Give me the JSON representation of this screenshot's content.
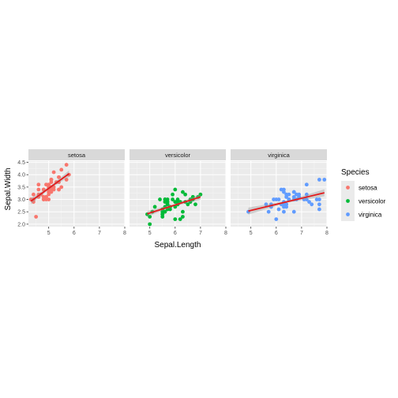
{
  "chart_data": {
    "type": "scatter",
    "xlabel": "Sepal.Length",
    "ylabel": "Sepal.Width",
    "xlim": [
      4.2,
      8.0
    ],
    "ylim": [
      1.9,
      4.55
    ],
    "x_ticks": [
      5,
      6,
      7,
      8
    ],
    "y_ticks": [
      2.0,
      2.5,
      3.0,
      3.5,
      4.0,
      4.5
    ],
    "y_tick_labels": [
      "2.0",
      "2.5",
      "3.0",
      "3.5",
      "4.0",
      "4.5"
    ],
    "grid": true,
    "legend": {
      "title": "Species",
      "placement": "right",
      "entries": [
        "setosa",
        "versicolor",
        "virginica"
      ]
    },
    "panels": [
      {
        "name": "setosa",
        "color": "#F8766D",
        "fit": {
          "x": [
            4.3,
            5.8
          ],
          "y": [
            2.93,
            4.04
          ],
          "band": [
            0.12,
            0.05,
            0.13
          ]
        },
        "points": [
          [
            5.1,
            3.5
          ],
          [
            4.9,
            3.0
          ],
          [
            4.7,
            3.2
          ],
          [
            4.6,
            3.1
          ],
          [
            5.0,
            3.6
          ],
          [
            5.4,
            3.9
          ],
          [
            4.6,
            3.4
          ],
          [
            5.0,
            3.4
          ],
          [
            4.4,
            2.9
          ],
          [
            4.9,
            3.1
          ],
          [
            5.4,
            3.7
          ],
          [
            4.8,
            3.4
          ],
          [
            4.8,
            3.0
          ],
          [
            4.3,
            3.0
          ],
          [
            5.8,
            4.0
          ],
          [
            5.7,
            4.4
          ],
          [
            5.4,
            3.9
          ],
          [
            5.1,
            3.5
          ],
          [
            5.7,
            3.8
          ],
          [
            5.1,
            3.8
          ],
          [
            5.4,
            3.4
          ],
          [
            5.1,
            3.7
          ],
          [
            4.6,
            3.6
          ],
          [
            5.1,
            3.3
          ],
          [
            4.8,
            3.4
          ],
          [
            5.0,
            3.0
          ],
          [
            5.0,
            3.4
          ],
          [
            5.2,
            3.5
          ],
          [
            5.2,
            3.4
          ],
          [
            4.7,
            3.2
          ],
          [
            4.8,
            3.1
          ],
          [
            5.4,
            3.4
          ],
          [
            5.2,
            4.1
          ],
          [
            5.5,
            4.2
          ],
          [
            4.9,
            3.1
          ],
          [
            5.0,
            3.2
          ],
          [
            5.5,
            3.5
          ],
          [
            4.9,
            3.6
          ],
          [
            4.4,
            3.0
          ],
          [
            5.1,
            3.4
          ],
          [
            5.0,
            3.5
          ],
          [
            4.5,
            2.3
          ],
          [
            4.4,
            3.2
          ],
          [
            5.0,
            3.5
          ],
          [
            5.1,
            3.8
          ],
          [
            4.8,
            3.0
          ],
          [
            5.1,
            3.8
          ],
          [
            4.6,
            3.2
          ],
          [
            5.3,
            3.7
          ],
          [
            5.0,
            3.3
          ]
        ]
      },
      {
        "name": "versicolor",
        "color": "#00BA38",
        "fit": {
          "x": [
            4.9,
            7.0
          ],
          "y": [
            2.42,
            3.1
          ],
          "band": [
            0.11,
            0.04,
            0.11
          ]
        },
        "points": [
          [
            7.0,
            3.2
          ],
          [
            6.4,
            3.2
          ],
          [
            6.9,
            3.1
          ],
          [
            5.5,
            2.3
          ],
          [
            6.5,
            2.8
          ],
          [
            5.7,
            2.8
          ],
          [
            6.3,
            3.3
          ],
          [
            4.9,
            2.4
          ],
          [
            6.6,
            2.9
          ],
          [
            5.2,
            2.7
          ],
          [
            5.0,
            2.0
          ],
          [
            5.9,
            3.0
          ],
          [
            6.0,
            2.2
          ],
          [
            6.1,
            2.9
          ],
          [
            5.6,
            2.9
          ],
          [
            6.7,
            3.1
          ],
          [
            5.6,
            3.0
          ],
          [
            5.8,
            2.7
          ],
          [
            6.2,
            2.2
          ],
          [
            5.6,
            2.5
          ],
          [
            5.9,
            3.2
          ],
          [
            6.1,
            2.8
          ],
          [
            6.3,
            2.5
          ],
          [
            6.1,
            2.8
          ],
          [
            6.4,
            2.9
          ],
          [
            6.6,
            3.0
          ],
          [
            6.8,
            2.8
          ],
          [
            6.7,
            3.0
          ],
          [
            6.0,
            2.9
          ],
          [
            5.7,
            2.6
          ],
          [
            5.5,
            2.4
          ],
          [
            5.5,
            2.4
          ],
          [
            5.8,
            2.7
          ],
          [
            6.0,
            2.7
          ],
          [
            5.4,
            3.0
          ],
          [
            6.0,
            3.4
          ],
          [
            6.7,
            3.1
          ],
          [
            6.3,
            2.3
          ],
          [
            5.6,
            3.0
          ],
          [
            5.5,
            2.5
          ],
          [
            5.5,
            2.6
          ],
          [
            6.1,
            3.0
          ],
          [
            5.8,
            2.6
          ],
          [
            5.0,
            2.3
          ],
          [
            5.6,
            2.7
          ],
          [
            5.7,
            3.0
          ],
          [
            5.7,
            2.9
          ],
          [
            6.2,
            2.9
          ],
          [
            5.1,
            2.5
          ],
          [
            5.7,
            2.8
          ]
        ]
      },
      {
        "name": "virginica",
        "color": "#619CFF",
        "fit": {
          "x": [
            4.9,
            7.9
          ],
          "y": [
            2.53,
            3.27
          ],
          "band": [
            0.14,
            0.04,
            0.14
          ]
        },
        "points": [
          [
            6.3,
            3.3
          ],
          [
            5.8,
            2.7
          ],
          [
            7.1,
            3.0
          ],
          [
            6.3,
            2.9
          ],
          [
            6.5,
            3.0
          ],
          [
            7.6,
            3.0
          ],
          [
            4.9,
            2.5
          ],
          [
            7.3,
            2.9
          ],
          [
            6.7,
            2.5
          ],
          [
            7.2,
            3.6
          ],
          [
            6.5,
            3.2
          ],
          [
            6.4,
            2.7
          ],
          [
            6.8,
            3.0
          ],
          [
            5.7,
            2.5
          ],
          [
            5.8,
            2.8
          ],
          [
            6.4,
            3.2
          ],
          [
            6.5,
            3.0
          ],
          [
            7.7,
            3.8
          ],
          [
            7.7,
            2.6
          ],
          [
            6.0,
            2.2
          ],
          [
            6.9,
            3.2
          ],
          [
            5.6,
            2.8
          ],
          [
            7.7,
            2.8
          ],
          [
            6.3,
            2.7
          ],
          [
            6.7,
            3.3
          ],
          [
            7.2,
            3.2
          ],
          [
            6.2,
            2.8
          ],
          [
            6.1,
            3.0
          ],
          [
            6.4,
            2.8
          ],
          [
            7.2,
            3.0
          ],
          [
            7.4,
            2.8
          ],
          [
            7.9,
            3.8
          ],
          [
            6.4,
            2.8
          ],
          [
            6.3,
            2.8
          ],
          [
            6.1,
            2.6
          ],
          [
            7.7,
            3.0
          ],
          [
            6.3,
            3.4
          ],
          [
            6.4,
            3.1
          ],
          [
            6.0,
            3.0
          ],
          [
            6.9,
            3.1
          ],
          [
            6.7,
            3.1
          ],
          [
            6.9,
            3.1
          ],
          [
            5.8,
            2.7
          ],
          [
            6.8,
            3.2
          ],
          [
            6.7,
            3.3
          ],
          [
            6.7,
            3.0
          ],
          [
            6.3,
            2.5
          ],
          [
            6.5,
            3.0
          ],
          [
            6.2,
            3.4
          ],
          [
            5.9,
            3.0
          ]
        ]
      }
    ]
  }
}
